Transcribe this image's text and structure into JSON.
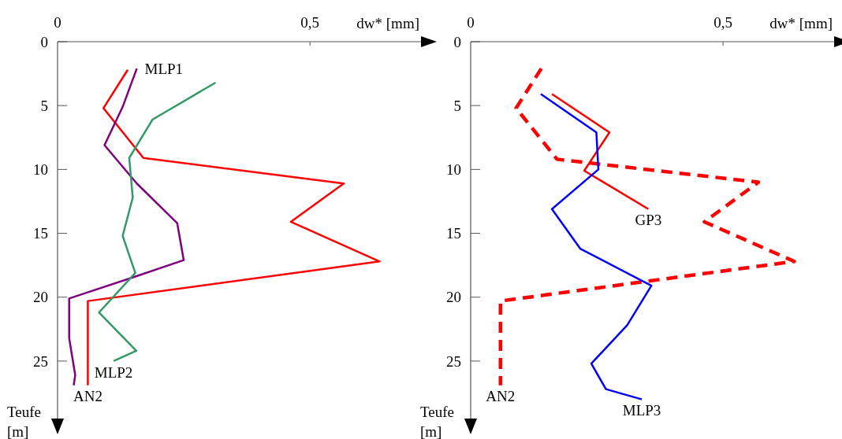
{
  "chart_data": [
    {
      "type": "line",
      "xlabel": "dw* [mm]",
      "ylabel": "Teufe [m]",
      "xlim": [
        0,
        0.72
      ],
      "ylim": [
        29.5,
        0
      ],
      "xticks": [
        0,
        {
          "value": 0.5,
          "label": "0,5"
        }
      ],
      "yticks": [
        0,
        5,
        10,
        15,
        20,
        25
      ],
      "grid": false,
      "marker": "none",
      "series": [
        {
          "name": "AN2",
          "color": "#ff0000",
          "line_style": "solid",
          "x": [
            0.139,
            0.091,
            0.17,
            0.567,
            0.462,
            0.638,
            0.06,
            0.06
          ],
          "values": [
            2.2,
            5.2,
            9.1,
            11.1,
            14.1,
            17.2,
            20.3,
            26.9
          ]
        },
        {
          "name": "MLP1",
          "color": "#800080",
          "line_style": "solid",
          "x": [
            0.157,
            0.129,
            0.093,
            0.157,
            0.237,
            0.25,
            0.153,
            0.023,
            0.023,
            0.035,
            0.032
          ],
          "values": [
            2.1,
            5.1,
            8.1,
            11.1,
            14.2,
            17.1,
            18.4,
            20.1,
            23.2,
            26.1,
            26.9
          ]
        },
        {
          "name": "MLP2",
          "color": "#339966",
          "line_style": "solid",
          "x": [
            0.313,
            0.188,
            0.142,
            0.149,
            0.129,
            0.154,
            0.082,
            0.156,
            0.111
          ],
          "values": [
            3.2,
            6.1,
            9.1,
            12.2,
            15.2,
            18.1,
            21.2,
            24.2,
            25.0
          ]
        }
      ]
    },
    {
      "type": "line",
      "xlabel": "dw* [mm]",
      "ylabel": "Teufe [m]",
      "xlim": [
        0,
        0.72
      ],
      "ylim": [
        29.5,
        0
      ],
      "xticks": [
        0,
        {
          "value": 0.5,
          "label": "0,5"
        }
      ],
      "yticks": [
        0,
        5,
        10,
        15,
        20,
        25
      ],
      "grid": false,
      "marker": "none",
      "series": [
        {
          "name": "AN2",
          "color": "#ff0000",
          "line_style": "dashed",
          "x": [
            0.14,
            0.09,
            0.171,
            0.57,
            0.463,
            0.641,
            0.059,
            0.059
          ],
          "values": [
            2.1,
            5.2,
            9.2,
            11.0,
            14.1,
            17.2,
            20.3,
            26.9
          ]
        },
        {
          "name": "GP3",
          "color": "#ff0000",
          "line_style": "solid",
          "x": [
            0.161,
            0.275,
            0.225,
            0.352
          ],
          "values": [
            4.1,
            7.1,
            10.1,
            13.1
          ]
        },
        {
          "name": "MLP3",
          "color": "#0000ff",
          "line_style": "solid",
          "x": [
            0.139,
            0.249,
            0.253,
            0.161,
            0.217,
            0.358,
            0.31,
            0.239,
            0.268,
            0.339
          ],
          "values": [
            4.1,
            7.1,
            10.0,
            13.1,
            16.2,
            19.1,
            22.2,
            25.2,
            27.2,
            28.0
          ]
        }
      ]
    }
  ]
}
